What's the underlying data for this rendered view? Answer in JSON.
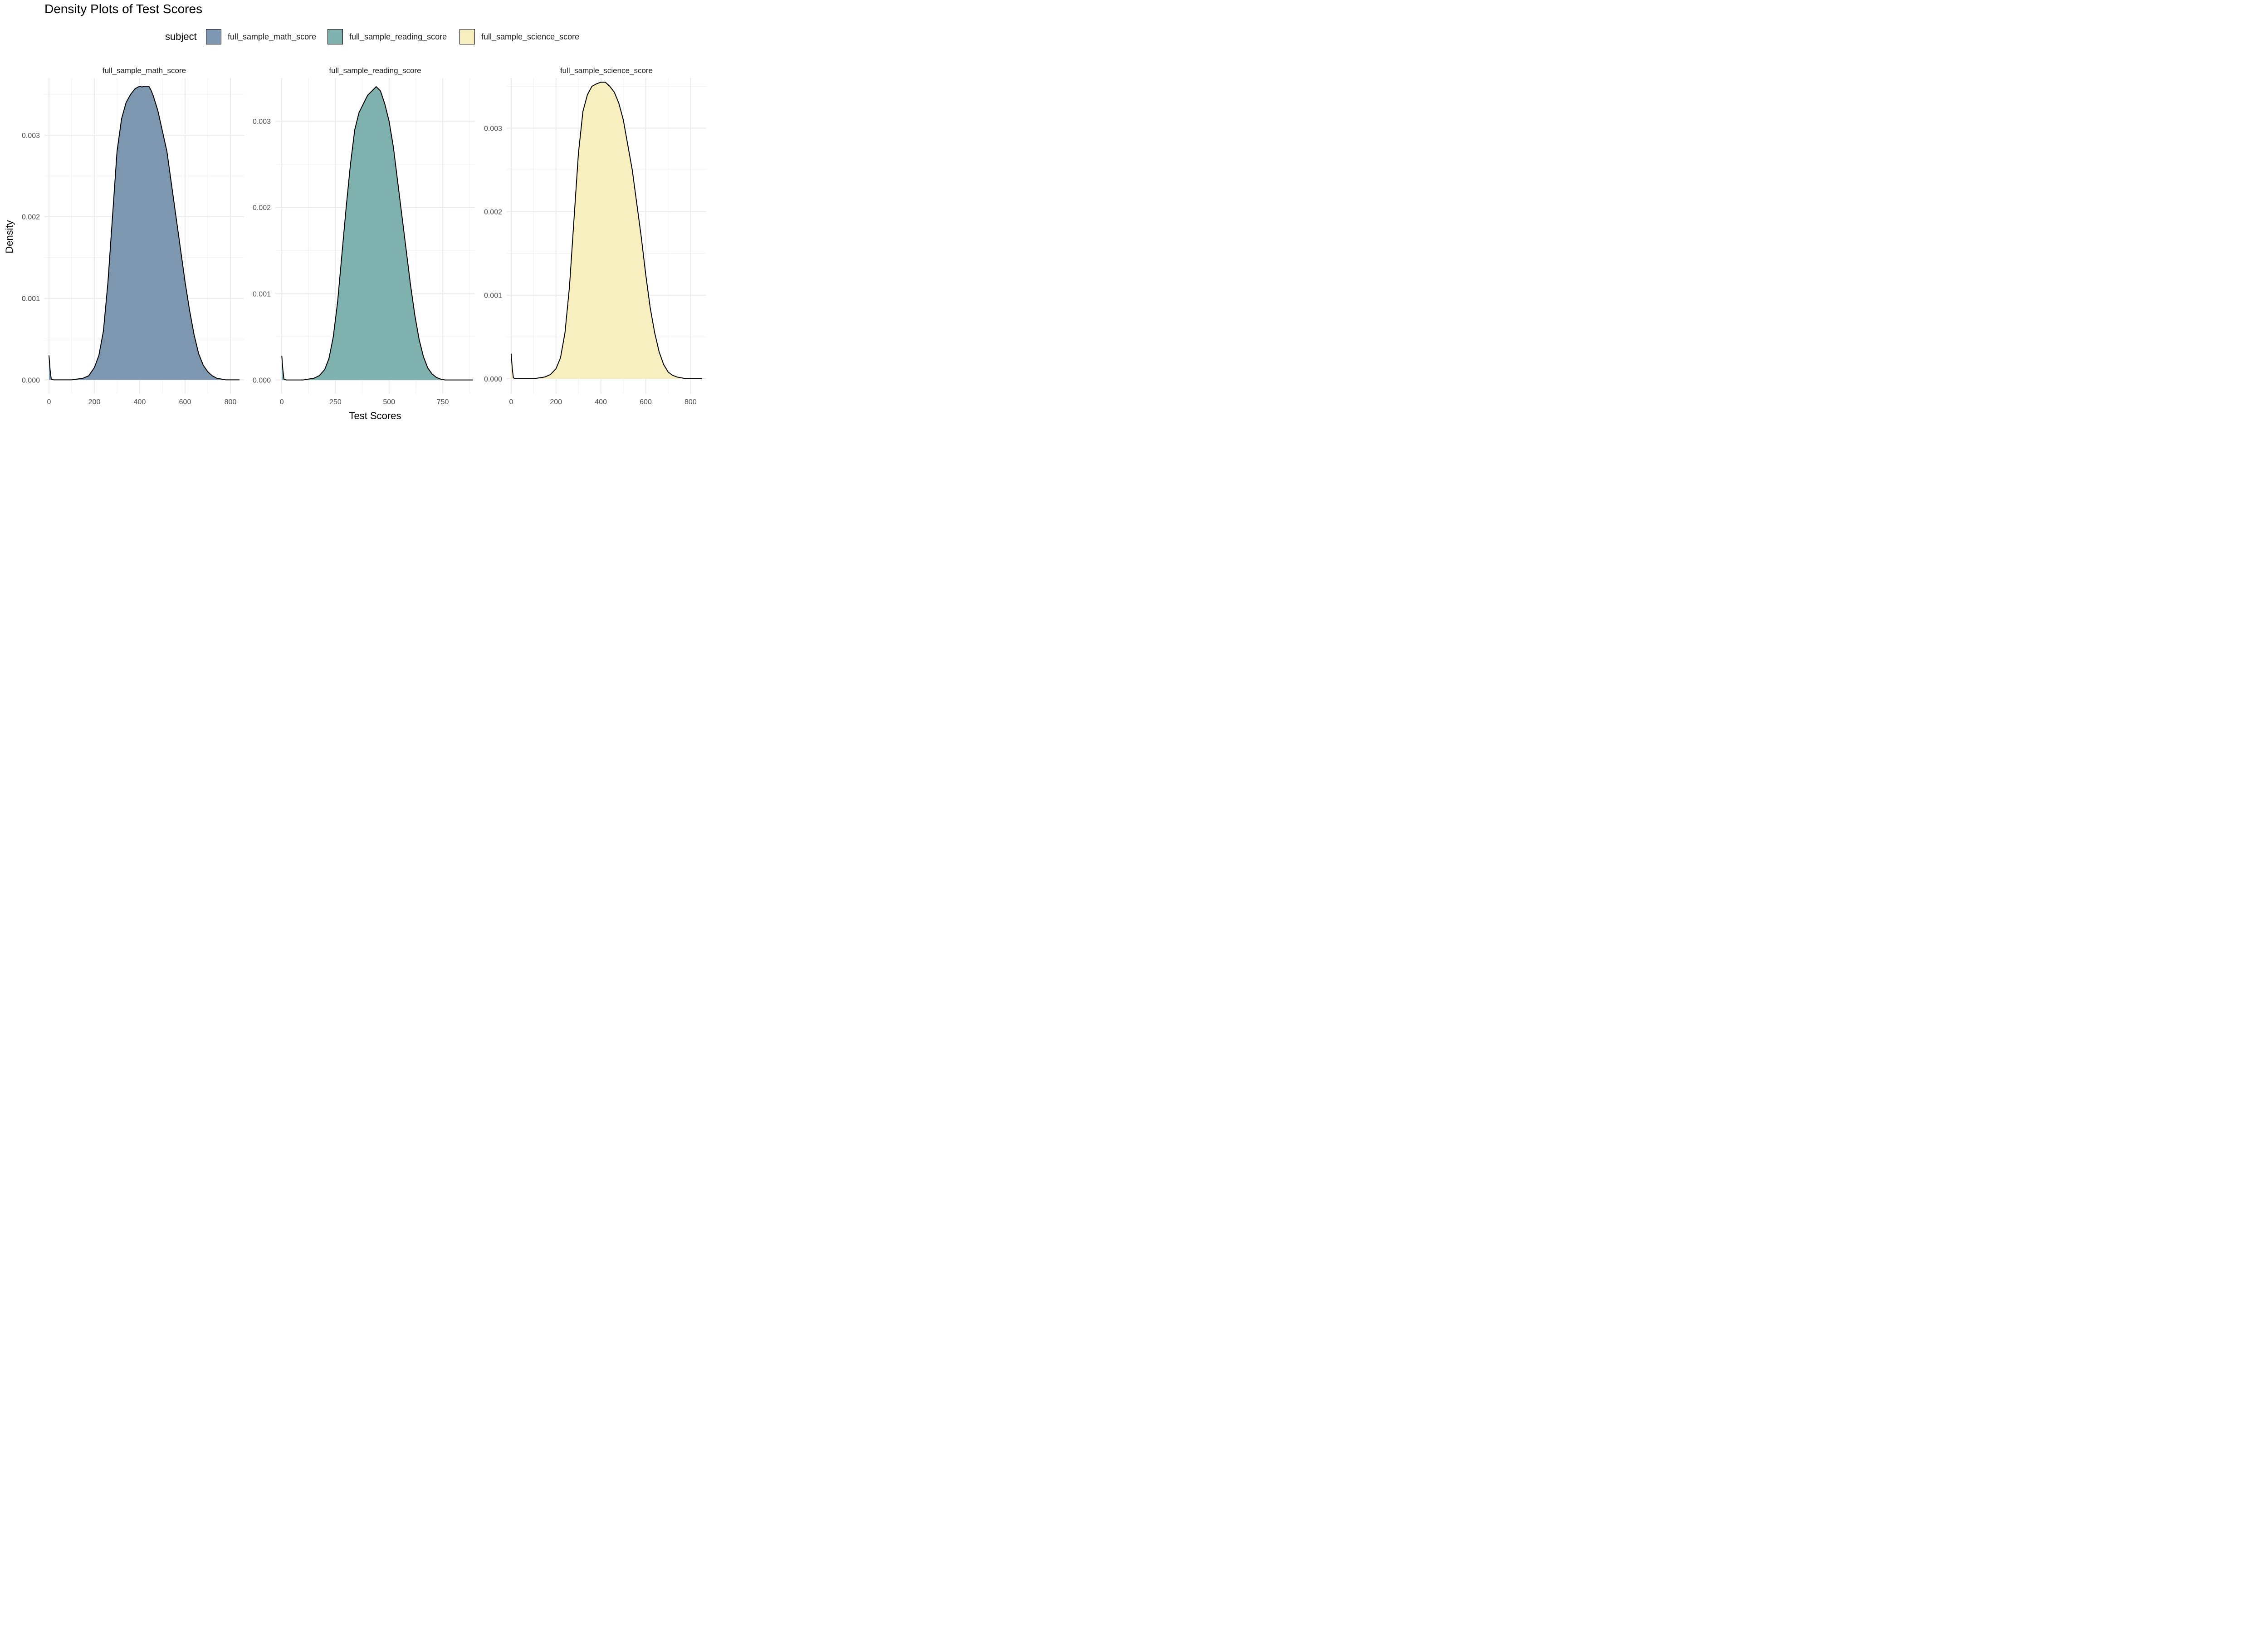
{
  "title": "Density Plots of Test Scores",
  "legend": {
    "title": "subject",
    "items": [
      {
        "label": "full_sample_math_score",
        "color": "#7E97B0"
      },
      {
        "label": "full_sample_reading_score",
        "color": "#7FB1AF"
      },
      {
        "label": "full_sample_science_score",
        "color": "#F7EFC0"
      }
    ]
  },
  "x_axis_title": "Test Scores",
  "y_axis_title": "Density",
  "chart_data": [
    {
      "type": "area",
      "strip": "full_sample_math_score",
      "fill": "#7E97B0",
      "xlim": [
        -20,
        860
      ],
      "ylim": [
        -0.00017,
        0.0037
      ],
      "x_ticks": [
        0,
        200,
        400,
        600,
        800
      ],
      "x_tick_labels": [
        "0",
        "200",
        "400",
        "600",
        "800"
      ],
      "y_ticks": [
        0,
        0.001,
        0.002,
        0.003
      ],
      "y_tick_labels": [
        "0.000",
        "0.001",
        "0.002",
        "0.003"
      ],
      "x": [
        0,
        5,
        10,
        20,
        50,
        100,
        150,
        175,
        200,
        220,
        240,
        260,
        280,
        300,
        320,
        340,
        360,
        380,
        400,
        410,
        420,
        430,
        440,
        450,
        460,
        480,
        500,
        520,
        540,
        560,
        580,
        600,
        620,
        640,
        660,
        680,
        700,
        720,
        740,
        760,
        780,
        800,
        840
      ],
      "y": [
        0.0003,
        0.00012,
        1e-05,
        0.0,
        0.0,
        0.0,
        2e-05,
        5e-05,
        0.00015,
        0.0003,
        0.0006,
        0.0012,
        0.002,
        0.0028,
        0.0032,
        0.0034,
        0.0035,
        0.00357,
        0.0036,
        0.00359,
        0.0036,
        0.0036,
        0.0036,
        0.00355,
        0.00348,
        0.0033,
        0.00305,
        0.0028,
        0.0024,
        0.002,
        0.0016,
        0.0012,
        0.00085,
        0.00055,
        0.00032,
        0.00018,
        0.0001,
        5e-05,
        2e-05,
        1e-05,
        0.0,
        0.0,
        0.0
      ]
    },
    {
      "type": "area",
      "strip": "full_sample_reading_score",
      "fill": "#7FB1AF",
      "xlim": [
        -30,
        900
      ],
      "ylim": [
        -0.00016,
        0.0035
      ],
      "x_ticks": [
        0,
        250,
        500,
        750
      ],
      "x_tick_labels": [
        "0",
        "250",
        "500",
        "750"
      ],
      "y_ticks": [
        0,
        0.001,
        0.002,
        0.003
      ],
      "y_tick_labels": [
        "0.000",
        "0.001",
        "0.002",
        "0.003"
      ],
      "x": [
        0,
        5,
        10,
        20,
        50,
        100,
        150,
        175,
        200,
        220,
        240,
        260,
        280,
        300,
        320,
        340,
        360,
        380,
        400,
        420,
        440,
        460,
        480,
        500,
        520,
        540,
        560,
        580,
        600,
        620,
        640,
        660,
        680,
        700,
        720,
        740,
        760,
        780,
        800,
        850,
        890
      ],
      "y": [
        0.00028,
        0.00012,
        1e-05,
        0.0,
        0.0,
        0.0,
        2e-05,
        5e-05,
        0.00012,
        0.00025,
        0.0005,
        0.0009,
        0.00145,
        0.002,
        0.0025,
        0.0029,
        0.0031,
        0.0032,
        0.0033,
        0.00335,
        0.0034,
        0.00335,
        0.0032,
        0.003,
        0.0027,
        0.0023,
        0.0019,
        0.0015,
        0.0011,
        0.00075,
        0.00047,
        0.00027,
        0.00014,
        7e-05,
        3e-05,
        1e-05,
        0.0,
        0.0,
        0.0,
        0.0,
        0.0
      ]
    },
    {
      "type": "area",
      "strip": "full_sample_science_score",
      "fill": "#F7EFC0",
      "xlim": [
        -20,
        870
      ],
      "ylim": [
        -0.00018,
        0.0036
      ],
      "x_ticks": [
        0,
        200,
        400,
        600,
        800
      ],
      "x_tick_labels": [
        "0",
        "200",
        "400",
        "600",
        "800"
      ],
      "y_ticks": [
        0,
        0.001,
        0.002,
        0.003
      ],
      "y_tick_labels": [
        "0.000",
        "0.001",
        "0.002",
        "0.003"
      ],
      "x": [
        0,
        5,
        10,
        20,
        50,
        100,
        150,
        175,
        200,
        220,
        240,
        260,
        280,
        300,
        320,
        340,
        360,
        380,
        400,
        420,
        440,
        460,
        480,
        500,
        520,
        540,
        560,
        580,
        600,
        620,
        640,
        660,
        680,
        700,
        720,
        740,
        760,
        780,
        800,
        850
      ],
      "y": [
        0.0003,
        0.00012,
        1e-05,
        0.0,
        0.0,
        0.0,
        2e-05,
        5e-05,
        0.00012,
        0.00025,
        0.00055,
        0.0011,
        0.0019,
        0.0027,
        0.0032,
        0.0034,
        0.0035,
        0.00353,
        0.00355,
        0.00355,
        0.0035,
        0.00343,
        0.0033,
        0.0031,
        0.0028,
        0.0025,
        0.0021,
        0.0017,
        0.00125,
        0.00085,
        0.00055,
        0.00032,
        0.00017,
        8e-05,
        4e-05,
        2e-05,
        1e-05,
        0.0,
        0.0,
        0.0
      ]
    }
  ]
}
